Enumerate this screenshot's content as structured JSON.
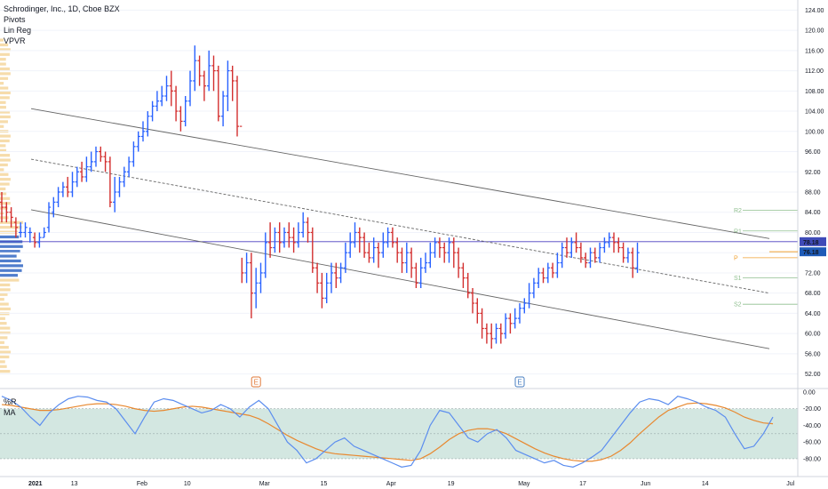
{
  "header": {
    "title": "Schrodinger, Inc., 1D, Cboe BZX",
    "indicators": [
      "Pivots",
      "Lin Reg",
      "VPVR"
    ],
    "osc_label_1": "%R",
    "osc_label_2": "MA"
  },
  "colors": {
    "up": "#2962ff",
    "down": "#d32f2f",
    "ma": "#e8882f",
    "wr": "#5b8def",
    "pivot": "#8fbf8f",
    "pivot_p": "#f0a030",
    "band": "#c8e1d9",
    "hline": "#4a3fbf"
  },
  "axis": {
    "ticks": [
      "124.00",
      "120.00",
      "116.00",
      "112.00",
      "108.00",
      "104.00",
      "100.00",
      "96.00",
      "92.00",
      "88.00",
      "84.00",
      "80.00",
      "76.00",
      "72.00",
      "68.00",
      "64.00",
      "60.00",
      "56.00",
      "52.00"
    ],
    "tick_values": [
      124,
      120,
      116,
      112,
      108,
      104,
      100,
      96,
      92,
      88,
      84,
      80,
      76,
      72,
      68,
      64,
      60,
      56,
      52
    ],
    "osc_ticks": [
      "0.00",
      "-20.00",
      "-40.00",
      "-60.00",
      "-80.00"
    ],
    "osc_tick_values": [
      0,
      -20,
      -40,
      -60,
      -80
    ],
    "price_labels": [
      {
        "text": "78.18",
        "value": 78.18,
        "color": "#3f4bb8"
      },
      {
        "text": "76.18",
        "value": 76.18,
        "color": "#1e5bb8"
      }
    ],
    "dates": [
      "2021",
      "13",
      "Feb",
      "10",
      "Mar",
      "15",
      "Apr",
      "19",
      "May",
      "17",
      "Jun",
      "14",
      "Jul"
    ],
    "date_x_index": [
      0,
      9,
      23,
      33,
      49,
      62,
      76,
      89,
      104,
      117,
      130,
      143,
      161
    ]
  },
  "pivots": [
    {
      "label": "R2",
      "value": 84.4
    },
    {
      "label": "R1",
      "value": 80.3
    },
    {
      "label": "P",
      "value": 75.0
    },
    {
      "label": "S1",
      "value": 71.0
    },
    {
      "label": "S2",
      "value": 65.8
    }
  ],
  "events": [
    {
      "label": "E",
      "index": 54
    },
    {
      "label": "E",
      "index": 110
    }
  ],
  "chart_data": {
    "type": "ohlc",
    "title": "Schrodinger, Inc., 1D, Cboe BZX",
    "ylim": [
      50,
      126
    ],
    "horizontal_line": 78.18,
    "last_price": 76.18,
    "series": [
      {
        "name": "price_ohlc",
        "values": [
          [
            86,
            85,
            88,
            82
          ],
          [
            85,
            84,
            86,
            82
          ],
          [
            84,
            83,
            85,
            81
          ],
          [
            82,
            81,
            83,
            79
          ],
          [
            80,
            80,
            82,
            79
          ],
          [
            80,
            81,
            82,
            79
          ],
          [
            80,
            80,
            81,
            78
          ],
          [
            79,
            78,
            80,
            77
          ],
          [
            78,
            79,
            80,
            77
          ],
          [
            79,
            80,
            81,
            79
          ],
          [
            81,
            85,
            86,
            80
          ],
          [
            84,
            86,
            87,
            83
          ],
          [
            86,
            88,
            89,
            85
          ],
          [
            88,
            89,
            90,
            87
          ],
          [
            89,
            88,
            91,
            87
          ],
          [
            88,
            90,
            92,
            87
          ],
          [
            90,
            92,
            93,
            89
          ],
          [
            92,
            91,
            94,
            90
          ],
          [
            91,
            93,
            95,
            90
          ],
          [
            93,
            94,
            96,
            92
          ],
          [
            94,
            96,
            97,
            93
          ],
          [
            96,
            95,
            97,
            94
          ],
          [
            95,
            94,
            96,
            92
          ],
          [
            94,
            86,
            95,
            85
          ],
          [
            86,
            88,
            91,
            84
          ],
          [
            88,
            90,
            91,
            87
          ],
          [
            90,
            92,
            93,
            89
          ],
          [
            92,
            94,
            95,
            91
          ],
          [
            94,
            97,
            98,
            93
          ],
          [
            97,
            99,
            100,
            96
          ],
          [
            99,
            100,
            102,
            98
          ],
          [
            100,
            103,
            104,
            99
          ],
          [
            103,
            105,
            106,
            102
          ],
          [
            105,
            106,
            108,
            104
          ],
          [
            106,
            107,
            109,
            105
          ],
          [
            107,
            109,
            111,
            106
          ],
          [
            109,
            108,
            112,
            105
          ],
          [
            108,
            104,
            109,
            102
          ],
          [
            104,
            102,
            105,
            100
          ],
          [
            102,
            106,
            107,
            101
          ],
          [
            106,
            110,
            112,
            105
          ],
          [
            110,
            114,
            117,
            108
          ],
          [
            114,
            111,
            115,
            109
          ],
          [
            111,
            109,
            112,
            106
          ],
          [
            109,
            113,
            116,
            108
          ],
          [
            113,
            112,
            115,
            108
          ],
          [
            112,
            103,
            113,
            102
          ],
          [
            103,
            107,
            108,
            101
          ],
          [
            107,
            112,
            114,
            104
          ],
          [
            112,
            110,
            113,
            106
          ],
          [
            110,
            101,
            111,
            99
          ],
          [
            101,
            72,
            75,
            70
          ],
          [
            72,
            74,
            76,
            70
          ],
          [
            74,
            68,
            76,
            63
          ],
          [
            68,
            70,
            73,
            65
          ],
          [
            70,
            72,
            74,
            68
          ],
          [
            72,
            78,
            80,
            71
          ],
          [
            78,
            77,
            82,
            75
          ],
          [
            77,
            80,
            81,
            76
          ],
          [
            80,
            78,
            82,
            76
          ],
          [
            78,
            80,
            81,
            77
          ],
          [
            80,
            79,
            82,
            77
          ],
          [
            79,
            78,
            81,
            76
          ],
          [
            78,
            80,
            82,
            77
          ],
          [
            80,
            82,
            84,
            79
          ],
          [
            82,
            80,
            83,
            78
          ],
          [
            80,
            73,
            81,
            72
          ],
          [
            73,
            70,
            74,
            68
          ],
          [
            70,
            67,
            72,
            65
          ],
          [
            67,
            70,
            72,
            66
          ],
          [
            70,
            72,
            74,
            68
          ],
          [
            72,
            71,
            74,
            69
          ],
          [
            71,
            73,
            74,
            70
          ],
          [
            73,
            76,
            78,
            72
          ],
          [
            76,
            78,
            80,
            75
          ],
          [
            78,
            80,
            82,
            77
          ],
          [
            80,
            79,
            81,
            76
          ],
          [
            79,
            76,
            80,
            75
          ],
          [
            76,
            75,
            78,
            74
          ],
          [
            75,
            77,
            79,
            74
          ],
          [
            77,
            76,
            78,
            73
          ],
          [
            76,
            78,
            80,
            75
          ],
          [
            78,
            80,
            81,
            77
          ],
          [
            80,
            78,
            81,
            77
          ],
          [
            78,
            76,
            79,
            74
          ],
          [
            76,
            74,
            77,
            72
          ],
          [
            74,
            76,
            78,
            72
          ],
          [
            76,
            73,
            77,
            71
          ],
          [
            73,
            70,
            74,
            69
          ],
          [
            70,
            73,
            75,
            69
          ],
          [
            73,
            74,
            76,
            72
          ],
          [
            74,
            76,
            78,
            73
          ],
          [
            76,
            78,
            79,
            75
          ],
          [
            78,
            77,
            79,
            75
          ],
          [
            77,
            76,
            78,
            74
          ],
          [
            76,
            78,
            79,
            74
          ],
          [
            78,
            76,
            79,
            73
          ],
          [
            76,
            73,
            77,
            71
          ],
          [
            73,
            71,
            74,
            69
          ],
          [
            71,
            68,
            72,
            67
          ],
          [
            68,
            66,
            69,
            64
          ],
          [
            66,
            64,
            67,
            62
          ],
          [
            64,
            61,
            65,
            59
          ],
          [
            61,
            60,
            62,
            58
          ],
          [
            60,
            59,
            62,
            57
          ],
          [
            59,
            61,
            62,
            58
          ],
          [
            61,
            60,
            62,
            58
          ],
          [
            60,
            63,
            64,
            59
          ],
          [
            63,
            62,
            64,
            60
          ],
          [
            62,
            63,
            65,
            61
          ],
          [
            63,
            65,
            66,
            62
          ],
          [
            65,
            66,
            67,
            64
          ],
          [
            66,
            68,
            70,
            65
          ],
          [
            68,
            70,
            71,
            67
          ],
          [
            70,
            72,
            73,
            69
          ],
          [
            72,
            71,
            73,
            70
          ],
          [
            71,
            73,
            74,
            70
          ],
          [
            73,
            72,
            74,
            71
          ],
          [
            72,
            74,
            76,
            71
          ],
          [
            74,
            77,
            78,
            73
          ],
          [
            77,
            76,
            79,
            75
          ],
          [
            76,
            78,
            79,
            75
          ],
          [
            78,
            77,
            80,
            76
          ],
          [
            77,
            75,
            78,
            74
          ],
          [
            75,
            74,
            76,
            73
          ],
          [
            74,
            76,
            77,
            73
          ],
          [
            76,
            75,
            77,
            74
          ],
          [
            75,
            77,
            78,
            74
          ],
          [
            77,
            78,
            79,
            76
          ],
          [
            78,
            79,
            80,
            77
          ],
          [
            79,
            78,
            80,
            76
          ],
          [
            78,
            77,
            79,
            76
          ],
          [
            77,
            75,
            78,
            74
          ],
          [
            75,
            76,
            77,
            74
          ],
          [
            76,
            73,
            77,
            71
          ],
          [
            73,
            76,
            78,
            72
          ]
        ]
      },
      {
        "name": "williams_r",
        "values": [
          -5,
          -10,
          -18,
          -30,
          -40,
          -25,
          -15,
          -8,
          -5,
          -6,
          -10,
          -12,
          -20,
          -35,
          -50,
          -30,
          -12,
          -8,
          -10,
          -15,
          -20,
          -25,
          -22,
          -15,
          -20,
          -30,
          -18,
          -10,
          -20,
          -40,
          -60,
          -70,
          -85,
          -80,
          -70,
          -60,
          -55,
          -65,
          -70,
          -75,
          -80,
          -85,
          -90,
          -88,
          -70,
          -40,
          -22,
          -25,
          -40,
          -55,
          -60,
          -50,
          -45,
          -55,
          -70,
          -75,
          -80,
          -85,
          -82,
          -88,
          -90,
          -85,
          -78,
          -70,
          -55,
          -40,
          -25,
          -12,
          -8,
          -10,
          -15,
          -5,
          -8,
          -12,
          -18,
          -22,
          -30,
          -50,
          -68,
          -65,
          -50,
          -30
        ]
      },
      {
        "name": "ma",
        "values": [
          -15,
          -16,
          -18,
          -20,
          -22,
          -22,
          -21,
          -19,
          -17,
          -15,
          -14,
          -14,
          -15,
          -17,
          -20,
          -22,
          -23,
          -22,
          -20,
          -18,
          -17,
          -18,
          -20,
          -22,
          -24,
          -26,
          -28,
          -32,
          -38,
          -45,
          -52,
          -58,
          -63,
          -68,
          -72,
          -74,
          -75,
          -76,
          -77,
          -78,
          -79,
          -80,
          -81,
          -82,
          -80,
          -74,
          -66,
          -57,
          -50,
          -46,
          -44,
          -44,
          -46,
          -50,
          -56,
          -62,
          -68,
          -73,
          -77,
          -80,
          -82,
          -83,
          -83,
          -81,
          -77,
          -70,
          -61,
          -50,
          -40,
          -30,
          -22,
          -18,
          -14,
          -13,
          -14,
          -16,
          -19,
          -24,
          -30,
          -34,
          -37,
          -38
        ]
      }
    ]
  }
}
